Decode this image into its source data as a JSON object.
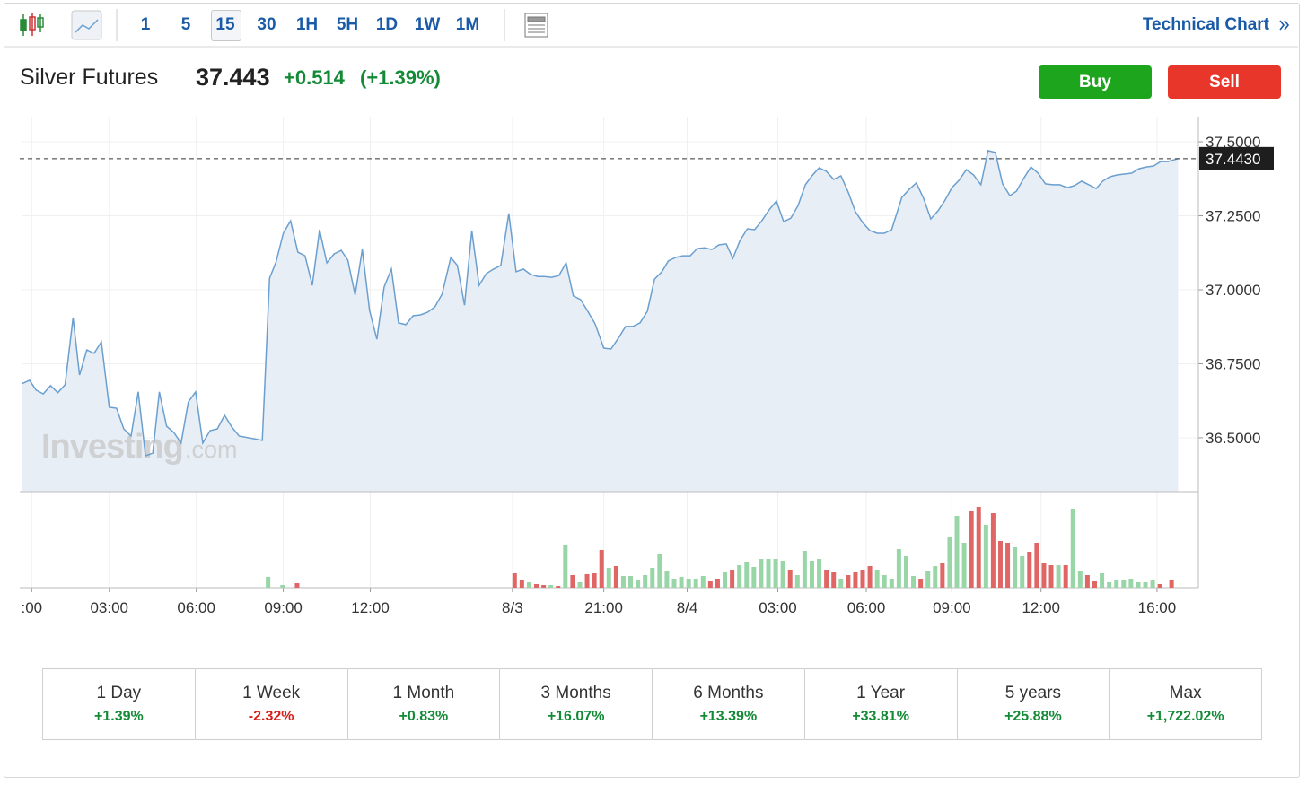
{
  "toolbar": {
    "intervals": [
      "1",
      "5",
      "15",
      "30",
      "1H",
      "5H",
      "1D",
      "1W",
      "1M"
    ],
    "active_interval": 2,
    "technical_chart": "Technical Chart"
  },
  "header": {
    "name": "Silver Futures",
    "price": "37.443",
    "change": "+0.514",
    "change_pct": "(+1.39%)",
    "change_color": "#138a36"
  },
  "buttons": {
    "buy": "Buy",
    "sell": "Sell"
  },
  "chart_data": {
    "type": "line",
    "color": "#6a9fcf",
    "fill": "#e8eef6",
    "x": [
      0,
      1.1,
      2,
      3,
      4,
      5,
      6,
      7.1,
      8,
      9,
      10,
      11,
      12.1,
      13.1,
      14.1,
      15.1,
      16.1,
      17.1,
      18.1,
      19,
      20,
      21,
      22,
      23,
      24,
      25,
      26,
      27,
      28,
      29,
      30,
      33.2,
      34.2,
      35.1,
      36.1,
      37.1,
      38.1,
      39.1,
      40.1,
      41.1,
      42.1,
      43.1,
      44.1,
      45,
      46,
      47,
      48,
      49,
      50,
      51,
      52,
      53,
      54,
      55,
      56,
      57,
      58,
      59.2,
      60.1,
      61.1,
      62.1,
      63.1,
      64.1,
      65.1,
      66.1,
      67.2,
      68.2,
      69.2,
      70.2,
      71.2,
      72.1,
      73.1,
      74.1,
      75.1,
      76.1,
      77.1,
      78.1,
      79.1,
      80.3,
      81.3,
      82.3,
      83.3,
      84.3,
      85.3,
      86.3,
      87.3,
      88.3,
      89.2,
      90.2,
      91.2,
      92.2,
      93.2,
      94.2,
      95.2,
      96.2,
      97.2,
      98.1,
      99.1,
      100.1,
      101.1,
      102.1,
      103.1,
      104.1,
      105.1,
      106.1,
      107.1,
      108.1,
      109,
      110,
      111,
      112,
      113,
      114,
      115,
      116,
      117,
      118,
      119,
      120,
      121.4,
      122.4,
      123.4,
      124.4,
      125.4,
      126.4,
      127.3,
      128.3,
      129.3,
      130.3,
      131.3,
      132.3,
      133.3,
      134.3,
      135.3,
      136.3,
      137.2,
      138.2,
      139.2,
      140.2,
      141.2,
      142.2,
      143.2,
      144.2,
      145.2,
      146.2,
      147.2,
      148.2,
      149.1,
      150.1,
      151.1,
      152.1,
      153.1,
      154.1,
      155.1,
      156.1,
      157.1,
      158.1,
      159.5
    ],
    "values": [
      36.682,
      36.694,
      36.661,
      36.648,
      36.676,
      36.652,
      36.679,
      36.906,
      36.712,
      36.797,
      36.785,
      36.824,
      36.603,
      36.6,
      36.53,
      36.506,
      36.655,
      36.439,
      36.448,
      36.655,
      36.539,
      36.518,
      36.482,
      36.621,
      36.655,
      36.482,
      36.524,
      36.53,
      36.576,
      36.536,
      36.506,
      36.491,
      37.039,
      37.094,
      37.191,
      37.233,
      37.127,
      37.115,
      37.015,
      37.203,
      37.091,
      37.121,
      37.133,
      37.1,
      36.982,
      37.136,
      36.93,
      36.833,
      37.009,
      37.07,
      36.888,
      36.882,
      36.912,
      36.915,
      36.924,
      36.942,
      36.985,
      37.109,
      37.082,
      36.948,
      37.2,
      37.015,
      37.055,
      37.07,
      37.082,
      37.258,
      37.061,
      37.07,
      37.052,
      37.045,
      37.045,
      37.042,
      37.048,
      37.091,
      36.979,
      36.967,
      36.927,
      36.885,
      36.803,
      36.8,
      36.836,
      36.876,
      36.876,
      36.888,
      36.927,
      37.036,
      37.061,
      37.097,
      37.109,
      37.115,
      37.115,
      37.139,
      37.142,
      37.136,
      37.152,
      37.155,
      37.106,
      37.167,
      37.206,
      37.203,
      37.233,
      37.27,
      37.3,
      37.23,
      37.242,
      37.285,
      37.355,
      37.385,
      37.412,
      37.4,
      37.373,
      37.385,
      37.33,
      37.264,
      37.227,
      37.2,
      37.191,
      37.191,
      37.203,
      37.312,
      37.339,
      37.361,
      37.309,
      37.239,
      37.267,
      37.3,
      37.345,
      37.37,
      37.406,
      37.388,
      37.355,
      37.47,
      37.464,
      37.358,
      37.318,
      37.333,
      37.376,
      37.415,
      37.394,
      37.358,
      37.355,
      37.355,
      37.345,
      37.352,
      37.367,
      37.355,
      37.342,
      37.367,
      37.382,
      37.388,
      37.391,
      37.394,
      37.409,
      37.415,
      37.418,
      37.433,
      37.433,
      37.443
    ],
    "xlim": [
      0,
      162.3
    ],
    "ylim": [
      36.318,
      37.585
    ],
    "yticks": [
      {
        "value": 36.5,
        "label": "36.5000"
      },
      {
        "value": 36.75,
        "label": "36.7500"
      },
      {
        "value": 37,
        "label": "37.0000"
      },
      {
        "value": 37.25,
        "label": "37.2500"
      },
      {
        "value": 37.5,
        "label": "37.5000"
      }
    ],
    "xticks": [
      {
        "value": 1.4,
        "label": ":00"
      },
      {
        "value": 12.1,
        "label": "03:00"
      },
      {
        "value": 24.1,
        "label": "06:00"
      },
      {
        "value": 36.1,
        "label": "09:00"
      },
      {
        "value": 48.1,
        "label": "12:00"
      },
      {
        "value": 67.7,
        "label": "8/3"
      },
      {
        "value": 80.3,
        "label": "21:00"
      },
      {
        "value": 91.8,
        "label": "8/4"
      },
      {
        "value": 104.3,
        "label": "03:00"
      },
      {
        "value": 116.5,
        "label": "06:00"
      },
      {
        "value": 128.3,
        "label": "09:00"
      },
      {
        "value": 140.6,
        "label": "12:00"
      },
      {
        "value": 156.6,
        "label": "16:00"
      }
    ],
    "grid": true,
    "last_price_label": "37.4430",
    "watermark": {
      "brand": "Investing",
      "suffix": ".com"
    },
    "volume": {
      "x": [
        34,
        36,
        38,
        68,
        69,
        70,
        71,
        72,
        73,
        74,
        75,
        76,
        77,
        78,
        79,
        80,
        81,
        82,
        83,
        84,
        85,
        86,
        87,
        88,
        89,
        90,
        91,
        92,
        93,
        94,
        95,
        96,
        97,
        98,
        99,
        100,
        101,
        102,
        103,
        104,
        105,
        106,
        107,
        108,
        109,
        110,
        111,
        112,
        113,
        114,
        115,
        116,
        117,
        118,
        119,
        120,
        121,
        122,
        123,
        124,
        125,
        126,
        127,
        128,
        129,
        130,
        131,
        132,
        133,
        134,
        135,
        136,
        137,
        138,
        139,
        140,
        141,
        142,
        143,
        144,
        145,
        146,
        147,
        148,
        149,
        150,
        151,
        152,
        153,
        154,
        155,
        156,
        157,
        158.6
      ],
      "values": [
        12,
        3,
        5,
        16,
        8,
        6,
        4,
        3,
        3,
        2,
        48,
        14,
        6,
        15,
        16,
        42,
        22,
        24,
        13,
        13,
        8,
        14,
        22,
        37,
        19,
        10,
        12,
        10,
        10,
        13,
        7,
        10,
        17,
        20,
        25,
        29,
        23,
        32,
        32,
        32,
        30,
        20,
        14,
        41,
        30,
        32,
        20,
        17,
        10,
        14,
        17,
        20,
        24,
        20,
        14,
        10,
        43,
        35,
        13,
        10,
        18,
        24,
        28,
        56,
        80,
        50,
        85,
        90,
        70,
        83,
        52,
        50,
        45,
        35,
        40,
        50,
        28,
        25,
        25,
        25,
        88,
        18,
        14,
        7,
        16,
        6,
        9,
        8,
        10,
        6,
        6,
        8,
        4,
        9
      ],
      "colors": [
        "#98d6a8",
        "#98d6a8",
        "#e06666",
        "#e06666",
        "#e06666",
        "#98d6a8",
        "#e06666",
        "#e06666",
        "#98d6a8",
        "#e06666",
        "#98d6a8",
        "#e06666",
        "#98d6a8",
        "#e06666",
        "#e06666",
        "#e06666",
        "#98d6a8",
        "#e06666",
        "#98d6a8",
        "#98d6a8",
        "#98d6a8",
        "#98d6a8",
        "#98d6a8",
        "#98d6a8",
        "#98d6a8",
        "#98d6a8",
        "#98d6a8",
        "#98d6a8",
        "#98d6a8",
        "#98d6a8",
        "#e06666",
        "#e06666",
        "#98d6a8",
        "#e06666",
        "#98d6a8",
        "#98d6a8",
        "#98d6a8",
        "#98d6a8",
        "#98d6a8",
        "#98d6a8",
        "#98d6a8",
        "#e06666",
        "#98d6a8",
        "#98d6a8",
        "#98d6a8",
        "#98d6a8",
        "#e06666",
        "#e06666",
        "#98d6a8",
        "#e06666",
        "#e06666",
        "#e06666",
        "#e06666",
        "#98d6a8",
        "#98d6a8",
        "#98d6a8",
        "#98d6a8",
        "#98d6a8",
        "#98d6a8",
        "#e06666",
        "#98d6a8",
        "#98d6a8",
        "#e06666",
        "#98d6a8",
        "#98d6a8",
        "#98d6a8",
        "#e06666",
        "#e06666",
        "#98d6a8",
        "#e06666",
        "#e06666",
        "#e06666",
        "#98d6a8",
        "#98d6a8",
        "#e06666",
        "#e06666",
        "#e06666",
        "#e06666",
        "#98d6a8",
        "#e06666",
        "#98d6a8",
        "#98d6a8",
        "#e06666",
        "#e06666",
        "#98d6a8",
        "#98d6a8",
        "#98d6a8",
        "#98d6a8",
        "#98d6a8",
        "#98d6a8",
        "#98d6a8",
        "#98d6a8",
        "#e06666",
        "#e06666"
      ]
    }
  },
  "performance": [
    {
      "period": "1 Day",
      "change": "+1.39%",
      "color": "#138a36"
    },
    {
      "period": "1 Week",
      "change": "-2.32%",
      "color": "#d91e18"
    },
    {
      "period": "1 Month",
      "change": "+0.83%",
      "color": "#138a36"
    },
    {
      "period": "3 Months",
      "change": "+16.07%",
      "color": "#138a36"
    },
    {
      "period": "6 Months",
      "change": "+13.39%",
      "color": "#138a36"
    },
    {
      "period": "1 Year",
      "change": "+33.81%",
      "color": "#138a36"
    },
    {
      "period": "5 years",
      "change": "+25.88%",
      "color": "#138a36"
    },
    {
      "period": "Max",
      "change": "+1,722.02%",
      "color": "#138a36"
    }
  ]
}
